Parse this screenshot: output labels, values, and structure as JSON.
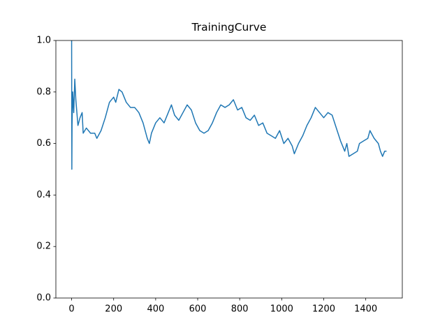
{
  "chart_data": {
    "type": "line",
    "title": "TrainingCurve",
    "color": "#1f77b4",
    "x": [
      0,
      1,
      2,
      5,
      10,
      15,
      20,
      30,
      40,
      50,
      55,
      70,
      90,
      110,
      120,
      140,
      160,
      180,
      200,
      210,
      225,
      240,
      260,
      280,
      300,
      320,
      340,
      360,
      370,
      380,
      400,
      420,
      440,
      460,
      475,
      490,
      510,
      530,
      550,
      570,
      590,
      610,
      630,
      650,
      670,
      690,
      710,
      730,
      750,
      770,
      790,
      810,
      830,
      850,
      870,
      890,
      910,
      930,
      950,
      970,
      990,
      1010,
      1030,
      1050,
      1060,
      1080,
      1100,
      1120,
      1140,
      1160,
      1180,
      1200,
      1220,
      1240,
      1260,
      1280,
      1300,
      1310,
      1320,
      1340,
      1360,
      1370,
      1390,
      1410,
      1420,
      1440,
      1460,
      1470,
      1480,
      1490,
      1499
    ],
    "values": [
      1.0,
      0.5,
      0.67,
      0.8,
      0.72,
      0.85,
      0.77,
      0.67,
      0.7,
      0.72,
      0.64,
      0.66,
      0.64,
      0.64,
      0.62,
      0.65,
      0.7,
      0.76,
      0.78,
      0.76,
      0.81,
      0.8,
      0.76,
      0.74,
      0.74,
      0.72,
      0.68,
      0.62,
      0.6,
      0.64,
      0.68,
      0.7,
      0.68,
      0.72,
      0.75,
      0.71,
      0.69,
      0.72,
      0.75,
      0.73,
      0.68,
      0.65,
      0.64,
      0.65,
      0.68,
      0.72,
      0.75,
      0.74,
      0.75,
      0.77,
      0.73,
      0.74,
      0.7,
      0.69,
      0.71,
      0.67,
      0.68,
      0.64,
      0.63,
      0.62,
      0.65,
      0.6,
      0.62,
      0.59,
      0.56,
      0.6,
      0.63,
      0.67,
      0.7,
      0.74,
      0.72,
      0.7,
      0.72,
      0.71,
      0.66,
      0.61,
      0.57,
      0.6,
      0.55,
      0.56,
      0.57,
      0.6,
      0.61,
      0.62,
      0.65,
      0.62,
      0.6,
      0.57,
      0.55,
      0.57,
      0.57
    ],
    "xlim": [
      -75,
      1574
    ],
    "ylim": [
      0,
      1
    ],
    "xticks": [
      0,
      200,
      400,
      600,
      800,
      1000,
      1200,
      1400
    ],
    "yticks": [
      {
        "value": 0,
        "label": "0.0"
      },
      0.2,
      0.4,
      0.6,
      0.8,
      {
        "value": 1,
        "label": "1.0"
      }
    ]
  }
}
